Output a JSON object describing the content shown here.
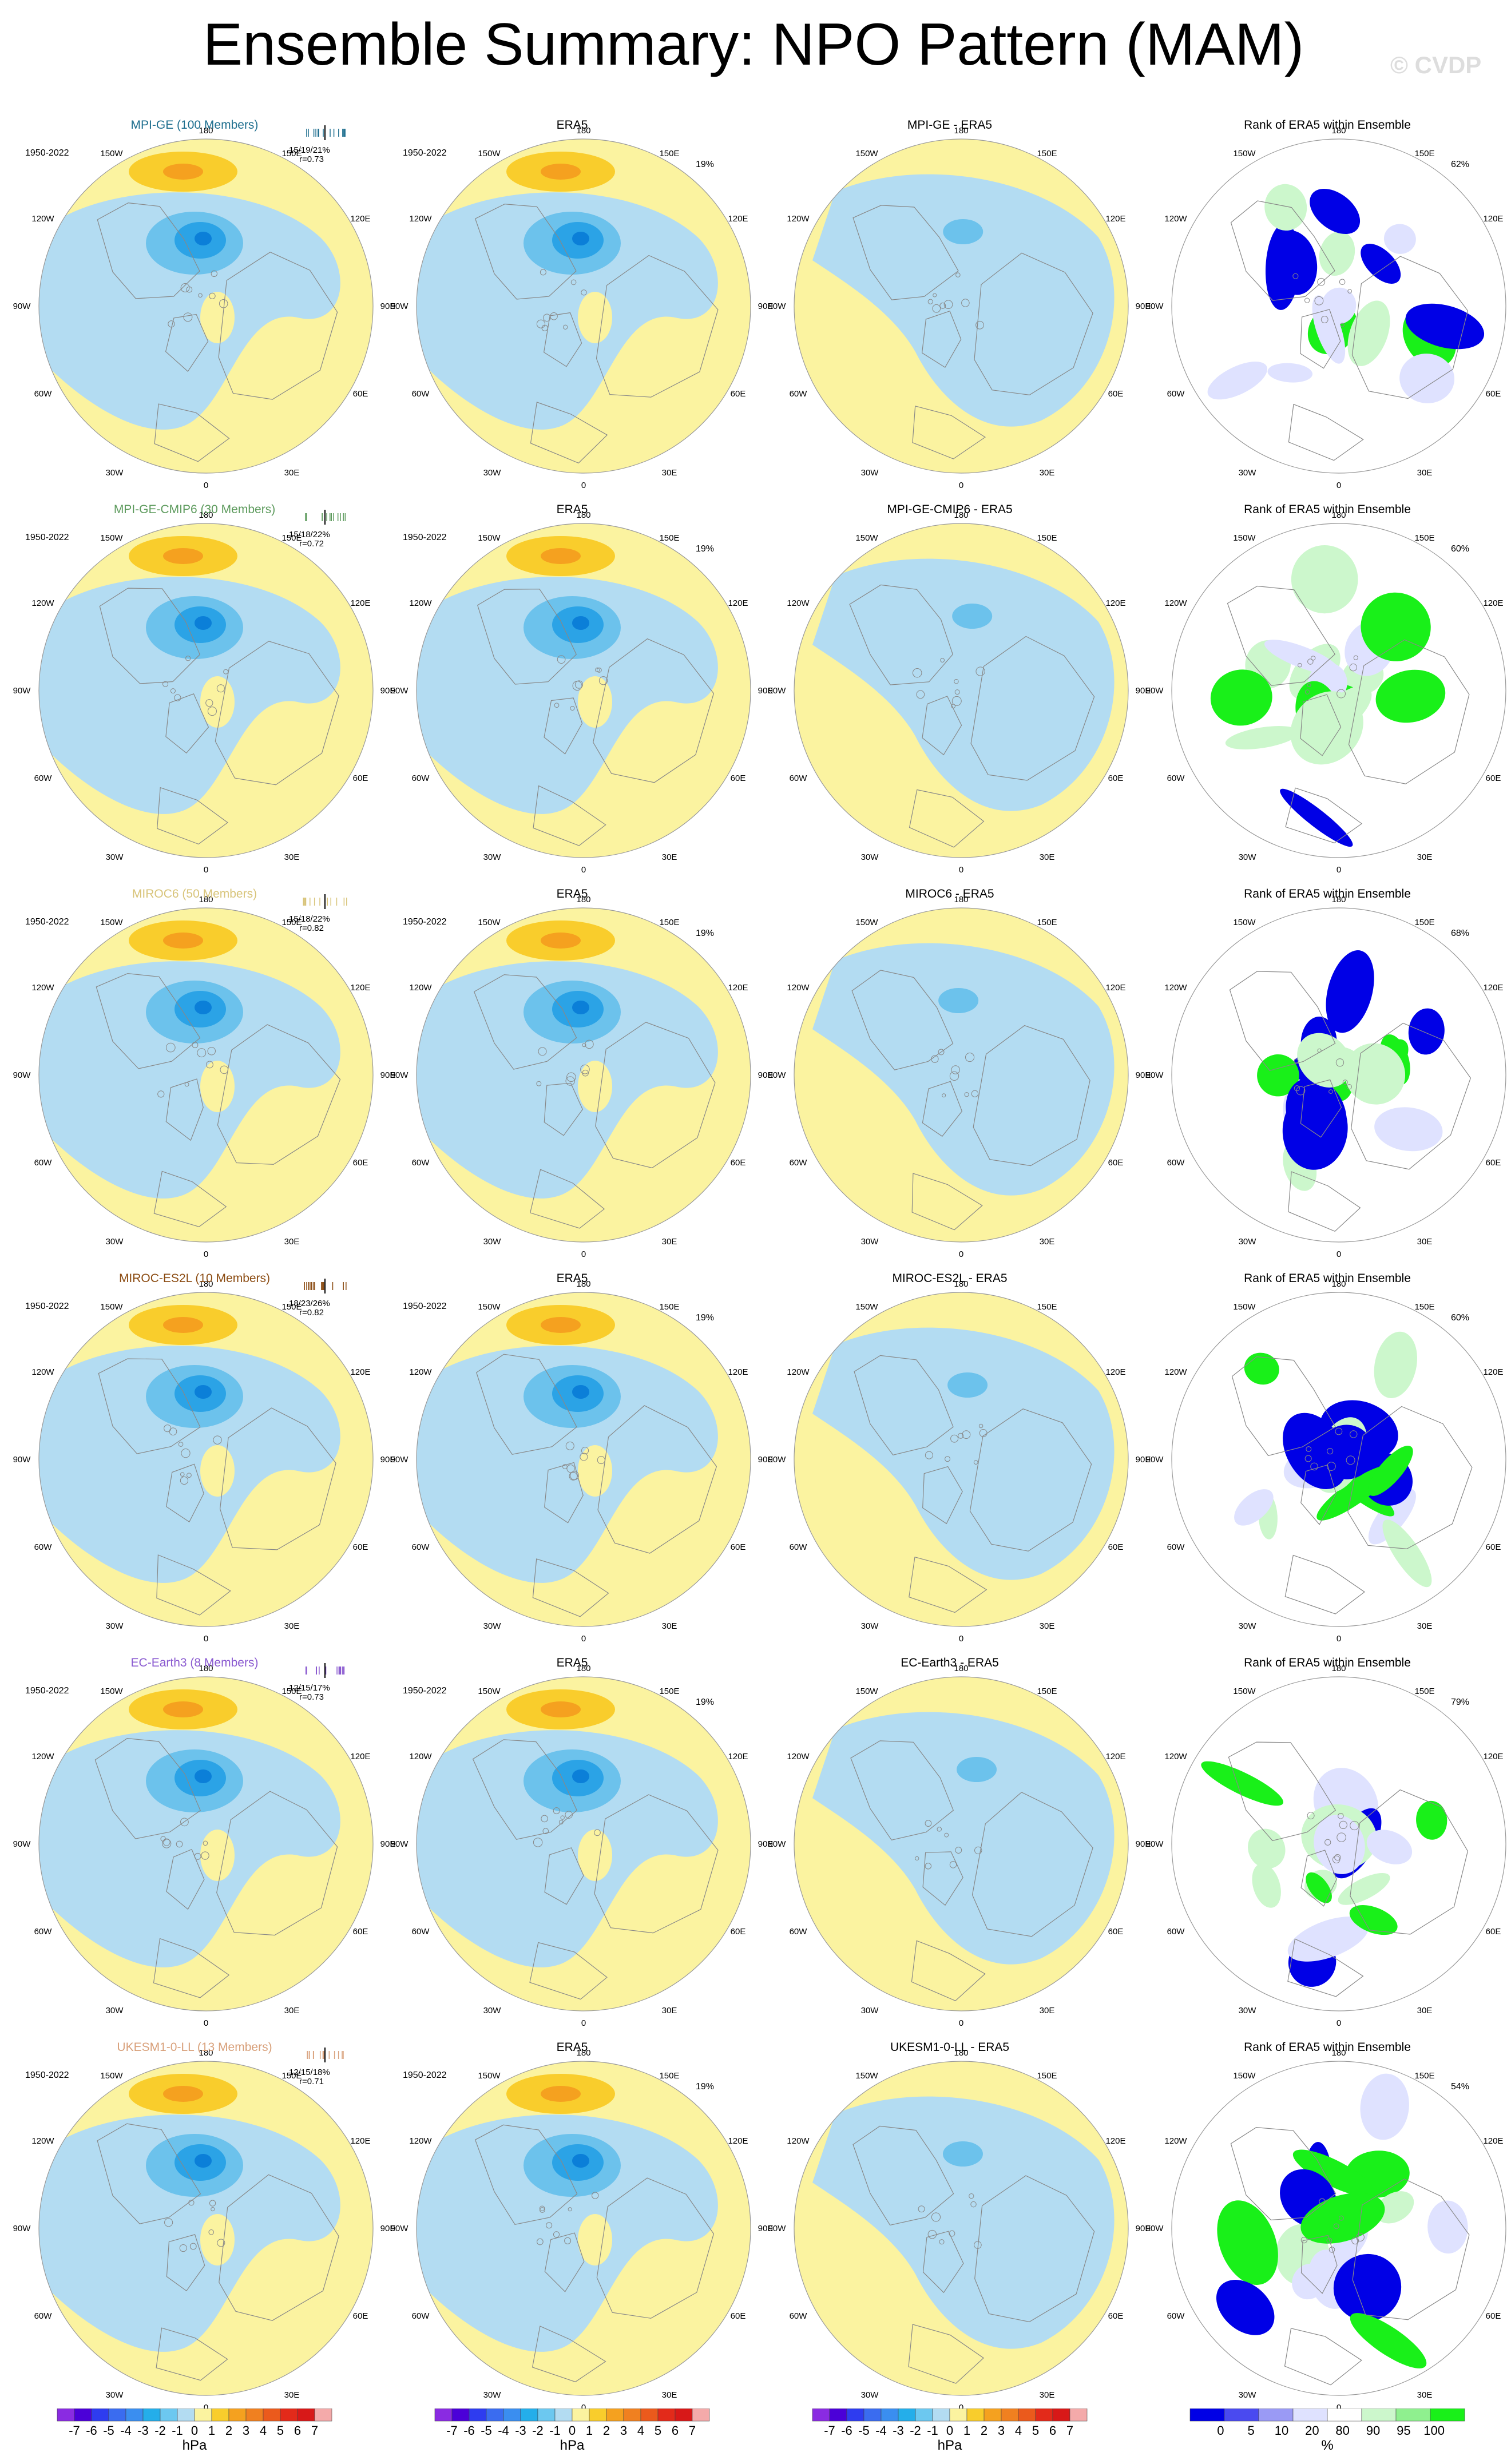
{
  "title": "Ensemble Summary: NPO Pattern (MAM)",
  "copyright": "© CVDP",
  "period": "1950-2022",
  "lon_labels": [
    "180",
    "150E",
    "120E",
    "90E",
    "60E",
    "30E",
    "0",
    "30W",
    "60W",
    "90W",
    "120W",
    "150W"
  ],
  "colors": {
    "pos1": "#fbf3a0",
    "pos2": "#f9cd2c",
    "pos3": "#f5a11f",
    "neg1": "#b3dcf2",
    "neg2": "#6cc2ec",
    "neg3": "#2ba3e6",
    "neg4": "#0b7fd8",
    "rank_blue": "#0000e6",
    "rank_lightblue": "#dfe2ff",
    "rank_green": "#19f019",
    "rank_lightgreen": "#ccf7cc",
    "coast": "#888888"
  },
  "rows": [
    {
      "model": "MPI-GE (100 Members)",
      "model_color": "#1f6f8f",
      "stats": "15/19/21%",
      "r": "r=0.73",
      "diff_title": "MPI-GE - ERA5",
      "rank_pct": "62%"
    },
    {
      "model": "MPI-GE-CMIP6 (30 Members)",
      "model_color": "#5c9a5c",
      "stats": "15/18/22%",
      "r": "r=0.72",
      "diff_title": "MPI-GE-CMIP6 - ERA5",
      "rank_pct": "60%"
    },
    {
      "model": "MIROC6 (50 Members)",
      "model_color": "#d8c47a",
      "stats": "15/18/22%",
      "r": "r=0.82",
      "diff_title": "MIROC6 - ERA5",
      "rank_pct": "68%"
    },
    {
      "model": "MIROC-ES2L (10 Members)",
      "model_color": "#8a4a10",
      "stats": "18/23/26%",
      "r": "r=0.82",
      "diff_title": "MIROC-ES2L - ERA5",
      "rank_pct": "60%"
    },
    {
      "model": "EC-Earth3 (8 Members)",
      "model_color": "#8a5ad0",
      "stats": "12/15/17%",
      "r": "r=0.73",
      "diff_title": "EC-Earth3 - ERA5",
      "rank_pct": "79%"
    },
    {
      "model": "UKESM1-0-LL (13 Members)",
      "model_color": "#d8a07a",
      "stats": "12/15/18%",
      "r": "r=0.71",
      "diff_title": "UKESM1-0-LL - ERA5",
      "rank_pct": "54%"
    }
  ],
  "era5": {
    "title": "ERA5",
    "pct": "19%"
  },
  "rank_title": "Rank of ERA5 within Ensemble",
  "colorbar_hpa": {
    "units": "hPa",
    "ticks": [
      "-7",
      "-6",
      "-5",
      "-4",
      "-3",
      "-2",
      "-1",
      "0",
      "1",
      "2",
      "3",
      "4",
      "5",
      "6",
      "7"
    ],
    "colors": [
      "#8a2be2",
      "#4b00d8",
      "#2e3cf0",
      "#3a6cf0",
      "#3a8ef0",
      "#24aeea",
      "#6cc8f0",
      "#b3dcf2",
      "#fbf3a0",
      "#f9cd2c",
      "#f5a11f",
      "#f08020",
      "#eb5a1c",
      "#e32a1a",
      "#d81818",
      "#f4aaaa"
    ]
  },
  "colorbar_rank": {
    "units": "%",
    "ticks": [
      "0",
      "5",
      "10",
      "20",
      "80",
      "90",
      "95",
      "100"
    ],
    "colors": [
      "#0000e6",
      "#4a4af0",
      "#9a9af5",
      "#dfe2ff",
      "#ffffff",
      "#ccf7cc",
      "#8ff08f",
      "#19f019"
    ]
  }
}
